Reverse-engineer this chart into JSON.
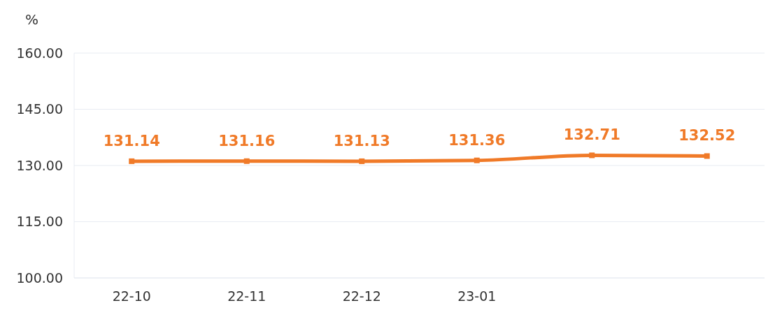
{
  "chart_data": {
    "type": "line",
    "ylabel": "%",
    "categories": [
      "22-10",
      "22-11",
      "22-12",
      "23-01",
      null,
      null
    ],
    "series": [
      {
        "color": "#f07a28",
        "values": [
          131.14,
          131.16,
          131.13,
          131.36,
          132.71,
          132.52
        ]
      }
    ],
    "ylim": [
      100,
      160
    ],
    "yticks": [
      {
        "value": 100,
        "label": "100.00"
      },
      {
        "value": 115,
        "label": "115.00"
      },
      {
        "value": 130,
        "label": "130.00"
      },
      {
        "value": 145,
        "label": "145.00"
      },
      {
        "value": 160,
        "label": "160.00"
      }
    ],
    "grid": "y",
    "marker": "square",
    "data_labels": true
  }
}
